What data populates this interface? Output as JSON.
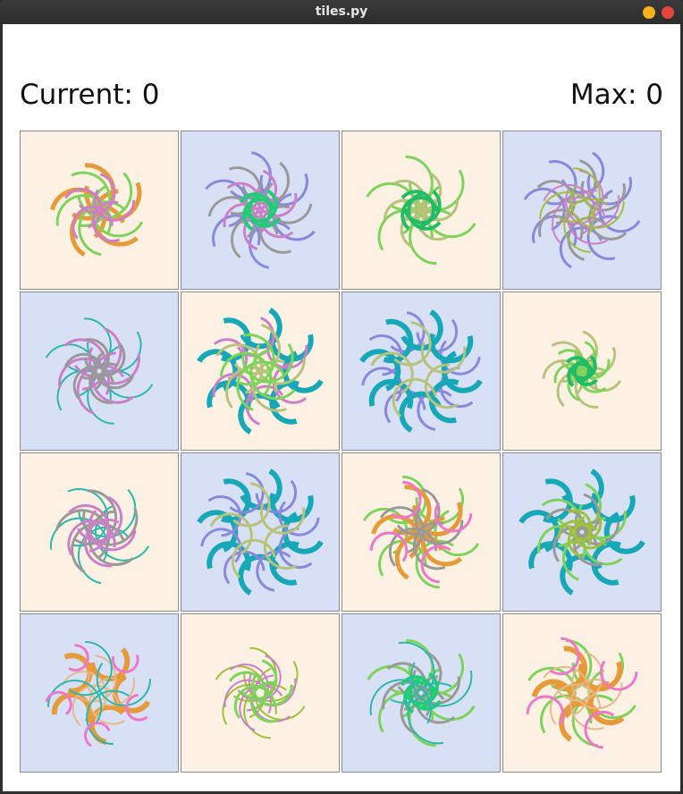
{
  "window": {
    "title": "tiles.py"
  },
  "scores": {
    "current": "Current: 0",
    "max": "Max: 0"
  },
  "colors": {
    "peach": "#fcf1e2",
    "blue": "#d8e0f6"
  },
  "tiles": [
    {
      "bg": "peach",
      "rings": [
        {
          "c": "#e69a3a",
          "w": 5,
          "r": 30,
          "d": 25,
          "n": 5,
          "o": 20
        },
        {
          "c": "#7ed35a",
          "w": 3,
          "r": 30,
          "d": 22,
          "n": 5,
          "o": 70
        },
        {
          "c": "#cc7fc8",
          "w": 3,
          "r": 22,
          "d": 20,
          "n": 5,
          "o": 40
        }
      ]
    },
    {
      "bg": "blue",
      "rings": [
        {
          "c": "#8888dd",
          "w": 3,
          "r": 26,
          "d": 42,
          "n": 6,
          "o": 10
        },
        {
          "c": "#999999",
          "w": 3,
          "r": 26,
          "d": 34,
          "n": 6,
          "o": 40
        },
        {
          "c": "#cc7fc8",
          "w": 3,
          "r": 22,
          "d": 24,
          "n": 6,
          "o": 20
        },
        {
          "c": "#22cc77",
          "w": 4,
          "r": 18,
          "d": 6,
          "n": 4,
          "o": 0
        }
      ]
    },
    {
      "bg": "peach",
      "rings": [
        {
          "c": "#7ed35a",
          "w": 3,
          "r": 30,
          "d": 35,
          "n": 6,
          "o": 0
        },
        {
          "c": "#b7c27a",
          "w": 3,
          "r": 22,
          "d": 22,
          "n": 6,
          "o": 30
        },
        {
          "c": "#22bb66",
          "w": 4,
          "r": 20,
          "d": 6,
          "n": 4,
          "o": 10
        }
      ]
    },
    {
      "bg": "blue",
      "rings": [
        {
          "c": "#8888dd",
          "w": 3,
          "r": 24,
          "d": 44,
          "n": 8,
          "o": 0
        },
        {
          "c": "#999999",
          "w": 3,
          "r": 24,
          "d": 34,
          "n": 6,
          "o": 15
        },
        {
          "c": "#cc7fc8",
          "w": 2,
          "r": 30,
          "d": 16,
          "n": 5,
          "o": 30
        },
        {
          "c": "#9fc03a",
          "w": 2,
          "r": 30,
          "d": 20,
          "n": 4,
          "o": 60
        }
      ]
    },
    {
      "bg": "blue",
      "rings": [
        {
          "c": "#2bb8a8",
          "w": 2,
          "r": 30,
          "d": 34,
          "n": 6,
          "o": 0
        },
        {
          "c": "#cc7fc8",
          "w": 3,
          "r": 28,
          "d": 22,
          "n": 6,
          "o": 20
        },
        {
          "c": "#999999",
          "w": 3,
          "r": 22,
          "d": 18,
          "n": 6,
          "o": 50
        }
      ]
    },
    {
      "bg": "peach",
      "rings": [
        {
          "c": "#17a8b8",
          "w": 6,
          "r": 22,
          "d": 50,
          "n": 8,
          "o": 0
        },
        {
          "c": "#cc7fc8",
          "w": 3,
          "r": 22,
          "d": 40,
          "n": 6,
          "o": 20
        },
        {
          "c": "#b7c27a",
          "w": 3,
          "r": 28,
          "d": 26,
          "n": 5,
          "o": 40
        },
        {
          "c": "#7ed35a",
          "w": 3,
          "r": 28,
          "d": 18,
          "n": 5,
          "o": 10
        }
      ]
    },
    {
      "bg": "blue",
      "rings": [
        {
          "c": "#8888dd",
          "w": 3,
          "r": 22,
          "d": 48,
          "n": 8,
          "o": 22
        },
        {
          "c": "#17a8b8",
          "w": 6,
          "r": 22,
          "d": 48,
          "n": 8,
          "o": 0
        },
        {
          "c": "#b7c27a",
          "w": 3,
          "r": 24,
          "d": 34,
          "n": 5,
          "o": 30
        }
      ]
    },
    {
      "bg": "peach",
      "rings": [
        {
          "c": "#b7c27a",
          "w": 3,
          "r": 22,
          "d": 24,
          "n": 7,
          "o": 0
        },
        {
          "c": "#7ed35a",
          "w": 3,
          "r": 18,
          "d": 16,
          "n": 6,
          "o": 20
        },
        {
          "c": "#22bb66",
          "w": 4,
          "r": 14,
          "d": 6,
          "n": 4,
          "o": 10
        }
      ]
    },
    {
      "bg": "peach",
      "rings": [
        {
          "c": "#2bb8a8",
          "w": 2,
          "r": 32,
          "d": 28,
          "n": 5,
          "o": 0
        },
        {
          "c": "#999999",
          "w": 3,
          "r": 30,
          "d": 20,
          "n": 5,
          "o": 20
        },
        {
          "c": "#cc7fc8",
          "w": 3,
          "r": 26,
          "d": 16,
          "n": 5,
          "o": 50
        }
      ]
    },
    {
      "bg": "blue",
      "rings": [
        {
          "c": "#17a8b8",
          "w": 6,
          "r": 22,
          "d": 50,
          "n": 8,
          "o": 0
        },
        {
          "c": "#8888dd",
          "w": 3,
          "r": 22,
          "d": 48,
          "n": 8,
          "o": 22
        },
        {
          "c": "#b7c27a",
          "w": 3,
          "r": 24,
          "d": 34,
          "n": 5,
          "o": 30
        }
      ]
    },
    {
      "bg": "peach",
      "rings": [
        {
          "c": "#7ed35a",
          "w": 3,
          "r": 26,
          "d": 42,
          "n": 6,
          "o": 0
        },
        {
          "c": "#e69a3a",
          "w": 5,
          "r": 26,
          "d": 30,
          "n": 5,
          "o": 20
        },
        {
          "c": "#999999",
          "w": 3,
          "r": 26,
          "d": 24,
          "n": 5,
          "o": 40
        },
        {
          "c": "#ee77cc",
          "w": 3,
          "r": 20,
          "d": 42,
          "n": 4,
          "o": 60
        }
      ]
    },
    {
      "bg": "blue",
      "rings": [
        {
          "c": "#17a8b8",
          "w": 6,
          "r": 22,
          "d": 50,
          "n": 8,
          "o": 0
        },
        {
          "c": "#7ed35a",
          "w": 3,
          "r": 26,
          "d": 30,
          "n": 6,
          "o": 20
        },
        {
          "c": "#999999",
          "w": 3,
          "r": 24,
          "d": 20,
          "n": 5,
          "o": 40
        },
        {
          "c": "#9fc03a",
          "w": 3,
          "r": 18,
          "d": 10,
          "n": 5,
          "o": 0
        }
      ]
    },
    {
      "bg": "blue",
      "rings": [
        {
          "c": "#e69a3a",
          "w": 6,
          "r": 20,
          "d": 38,
          "n": 5,
          "o": 0
        },
        {
          "c": "#e6b88a",
          "w": 2,
          "r": 26,
          "d": 18,
          "n": 5,
          "o": 30
        },
        {
          "c": "#2bb8a8",
          "w": 2,
          "r": 30,
          "d": 32,
          "n": 4,
          "o": 60
        },
        {
          "c": "#ee77cc",
          "w": 3,
          "r": 14,
          "d": 48,
          "n": 5,
          "o": 20
        }
      ]
    },
    {
      "bg": "peach",
      "rings": [
        {
          "c": "#9fc03a",
          "w": 2,
          "r": 30,
          "d": 24,
          "n": 6,
          "o": 0
        },
        {
          "c": "#cc7fc8",
          "w": 2,
          "r": 26,
          "d": 18,
          "n": 6,
          "o": 20
        },
        {
          "c": "#7ed35a",
          "w": 3,
          "r": 22,
          "d": 16,
          "n": 5,
          "o": 40
        }
      ]
    },
    {
      "bg": "blue",
      "rings": [
        {
          "c": "#7ed35a",
          "w": 3,
          "r": 30,
          "d": 34,
          "n": 6,
          "o": 0
        },
        {
          "c": "#999999",
          "w": 3,
          "r": 26,
          "d": 22,
          "n": 6,
          "o": 20
        },
        {
          "c": "#22cc77",
          "w": 4,
          "r": 18,
          "d": 6,
          "n": 4,
          "o": 0
        },
        {
          "c": "#2bb8a8",
          "w": 2,
          "r": 34,
          "d": 30,
          "n": 4,
          "o": 50
        }
      ]
    },
    {
      "bg": "peach",
      "rings": [
        {
          "c": "#7ed35a",
          "w": 3,
          "r": 28,
          "d": 36,
          "n": 6,
          "o": 0
        },
        {
          "c": "#e69a3a",
          "w": 6,
          "r": 22,
          "d": 34,
          "n": 5,
          "o": 20
        },
        {
          "c": "#e6b88a",
          "w": 2,
          "r": 28,
          "d": 20,
          "n": 5,
          "o": 40
        },
        {
          "c": "#ee77cc",
          "w": 3,
          "r": 20,
          "d": 48,
          "n": 4,
          "o": 60
        }
      ]
    }
  ]
}
